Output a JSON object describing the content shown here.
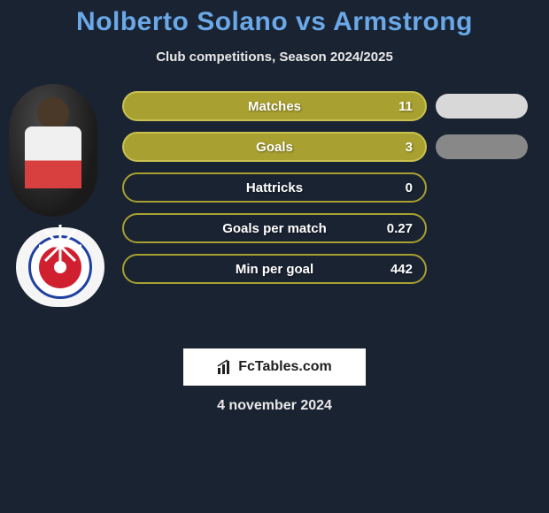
{
  "title": {
    "text": "Nolberto Solano vs Armstrong",
    "color": "#6aa8e8",
    "fontsize": 30
  },
  "subtitle": "Club competitions, Season 2024/2025",
  "background_color": "#1a2332",
  "stats": [
    {
      "label": "Matches",
      "value": "11",
      "bg": "#a8a030",
      "border": "#c8c050"
    },
    {
      "label": "Goals",
      "value": "3",
      "bg": "#a8a030",
      "border": "#c8c050"
    },
    {
      "label": "Hattricks",
      "value": "0",
      "bg": "#1a2332",
      "border": "#a8a030"
    },
    {
      "label": "Goals per match",
      "value": "0.27",
      "bg": "#1a2332",
      "border": "#a8a030"
    },
    {
      "label": "Min per goal",
      "value": "442",
      "bg": "#1a2332",
      "border": "#a8a030"
    }
  ],
  "right_ovals": [
    {
      "color": "#d8d8d8"
    },
    {
      "color": "#888888"
    }
  ],
  "footer_brand": "FcTables.com",
  "footer_date": "4 november 2024",
  "pill_style": {
    "height": 34,
    "border_radius": 17,
    "font_size": 15,
    "gap": 12
  }
}
